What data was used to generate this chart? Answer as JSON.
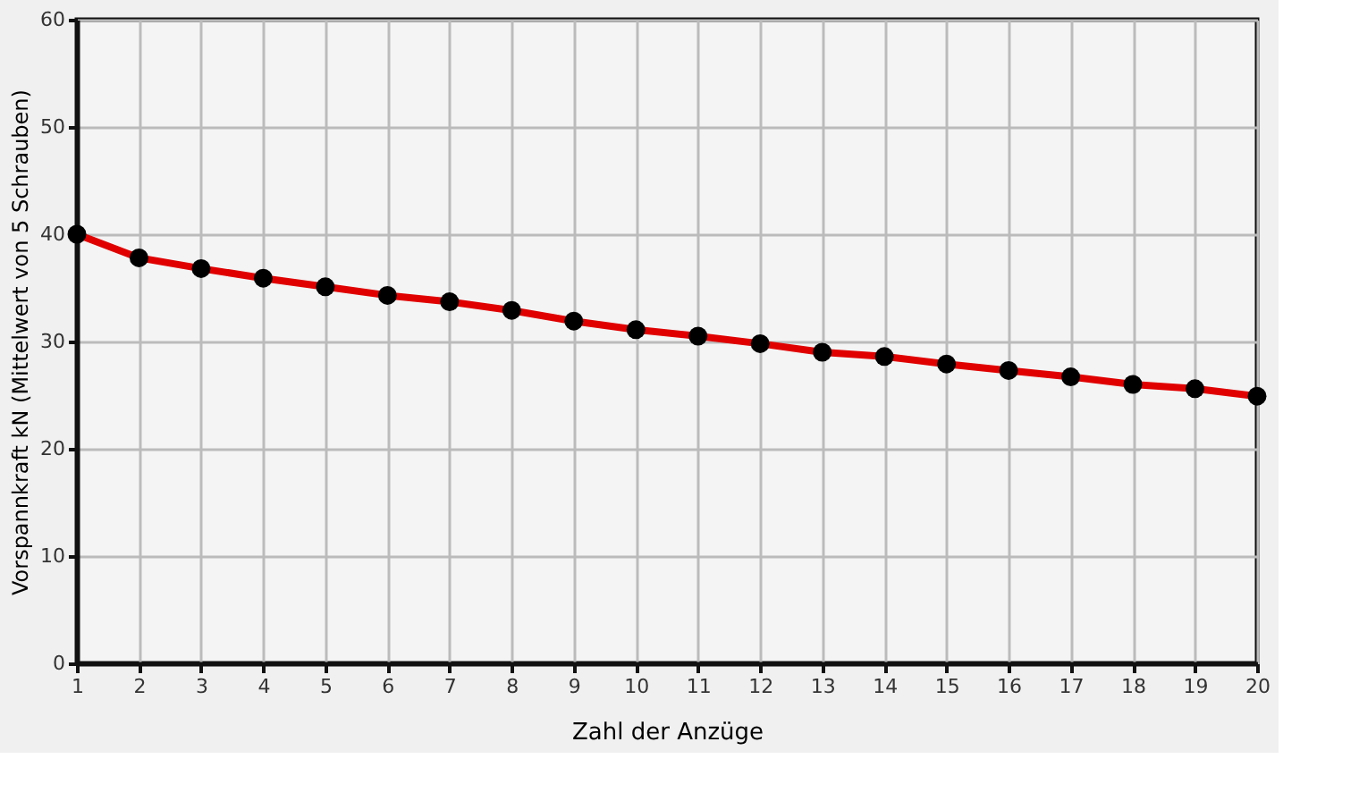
{
  "chart_data": {
    "type": "line",
    "xlabel": "Zahl der Anzüge",
    "ylabel": "Vorspannkraft kN (Mittelwert von 5 Schrauben)",
    "x": [
      1,
      2,
      3,
      4,
      5,
      6,
      7,
      8,
      9,
      10,
      11,
      12,
      13,
      14,
      15,
      16,
      17,
      18,
      19,
      20
    ],
    "series": [
      {
        "color": "#e00000",
        "values": [
          40,
          37.8,
          36.8,
          35.9,
          35.1,
          34.3,
          33.7,
          32.9,
          31.9,
          31.1,
          30.5,
          29.8,
          29.0,
          28.6,
          27.9,
          27.3,
          26.7,
          26.0,
          25.6,
          24.9
        ]
      }
    ],
    "xlim": [
      1,
      20
    ],
    "xticks": [
      1,
      2,
      3,
      4,
      5,
      6,
      7,
      8,
      9,
      10,
      11,
      12,
      13,
      14,
      15,
      16,
      17,
      18,
      19,
      20
    ],
    "ylim": [
      0,
      60
    ],
    "yticks": [
      0,
      10,
      20,
      30,
      40,
      50,
      60
    ],
    "grid": true,
    "marker": "circle",
    "line_style": "solid"
  }
}
